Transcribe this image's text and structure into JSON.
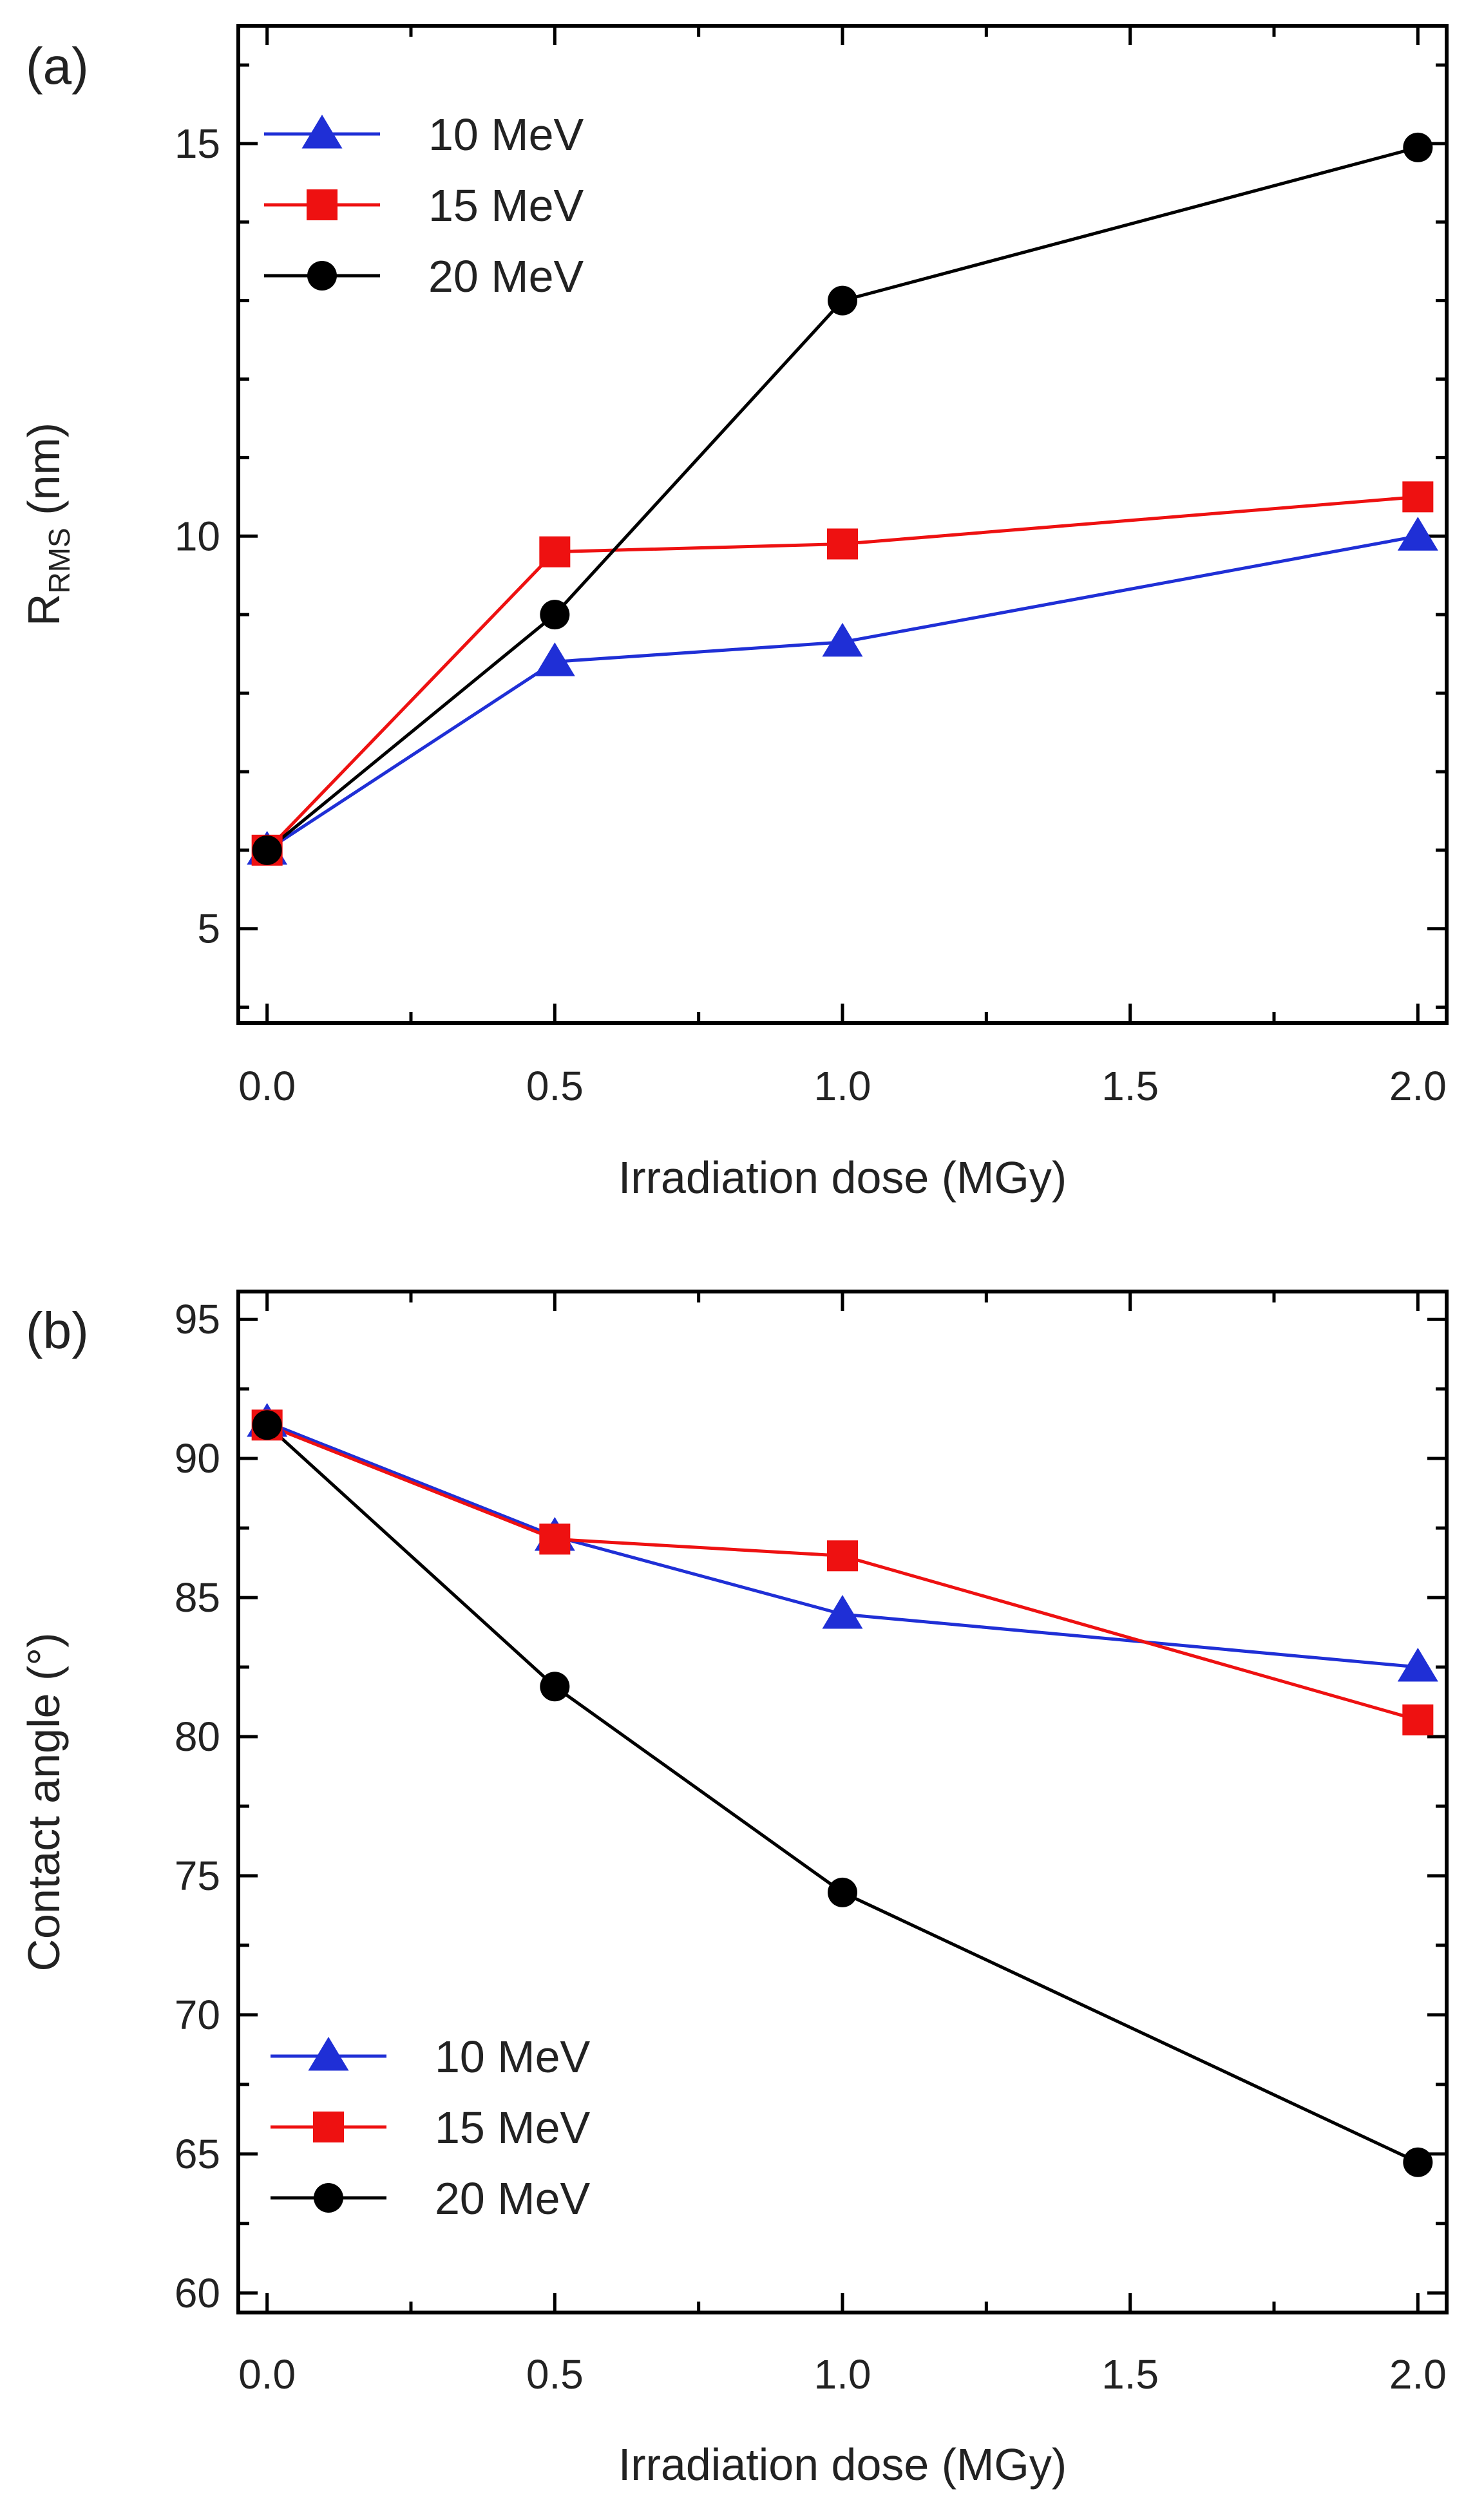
{
  "chart_data": [
    {
      "panel_label": "(a)",
      "type": "line",
      "xlabel": "Irradiation dose (MGy)",
      "ylabel": {
        "main": "R",
        "subscript": "RMS",
        "unit": " (nm)"
      },
      "xlim": [
        -0.05,
        2.05
      ],
      "ylim": [
        3.8,
        16.5
      ],
      "xticks": [
        0.0,
        0.5,
        1.0,
        1.5,
        2.0
      ],
      "xtick_labels": [
        "0.0",
        "0.5",
        "1.0",
        "1.5",
        "2.0"
      ],
      "yticks": [
        5,
        10,
        15
      ],
      "ytick_labels": [
        "5",
        "10",
        "15"
      ],
      "legend_position": "top-left",
      "series": [
        {
          "name": "10 MeV",
          "color": "#1f2fd6",
          "marker": "triangle",
          "x": [
            0,
            0.5,
            1.0,
            2.0
          ],
          "values": [
            6.0,
            8.4,
            8.65,
            10.0
          ]
        },
        {
          "name": "15 MeV",
          "color": "#ee1111",
          "marker": "square",
          "x": [
            0,
            0.5,
            1.0,
            2.0
          ],
          "values": [
            6.0,
            9.8,
            9.9,
            10.5
          ]
        },
        {
          "name": "20 MeV",
          "color": "#000000",
          "marker": "circle",
          "x": [
            0,
            0.5,
            1.0,
            2.0
          ],
          "values": [
            6.0,
            9.0,
            13.0,
            14.95
          ]
        }
      ]
    },
    {
      "panel_label": "(b)",
      "type": "line",
      "xlabel": "Irradiation dose (MGy)",
      "ylabel": {
        "main": "Contact angle (°)"
      },
      "xlim": [
        -0.05,
        2.05
      ],
      "ylim": [
        59.3,
        96
      ],
      "xticks": [
        0.0,
        0.5,
        1.0,
        1.5,
        2.0
      ],
      "xtick_labels": [
        "0.0",
        "0.5",
        "1.0",
        "1.5",
        "2.0"
      ],
      "yticks": [
        60,
        65,
        70,
        75,
        80,
        85,
        90,
        95
      ],
      "ytick_labels": [
        "60",
        "65",
        "70",
        "75",
        "80",
        "85",
        "90",
        "95"
      ],
      "legend_position": "bottom-left",
      "series": [
        {
          "name": "10 MeV",
          "color": "#1f2fd6",
          "marker": "triangle",
          "x": [
            0,
            0.5,
            1.0,
            2.0
          ],
          "values": [
            91.3,
            87.2,
            84.4,
            82.5
          ]
        },
        {
          "name": "15 MeV",
          "color": "#ee1111",
          "marker": "square",
          "x": [
            0,
            0.5,
            1.0,
            2.0
          ],
          "values": [
            91.2,
            87.1,
            86.5,
            80.6
          ]
        },
        {
          "name": "20 MeV",
          "color": "#000000",
          "marker": "circle",
          "x": [
            0,
            0.5,
            1.0,
            2.0
          ],
          "values": [
            91.2,
            81.8,
            74.4,
            64.7
          ]
        }
      ]
    }
  ]
}
